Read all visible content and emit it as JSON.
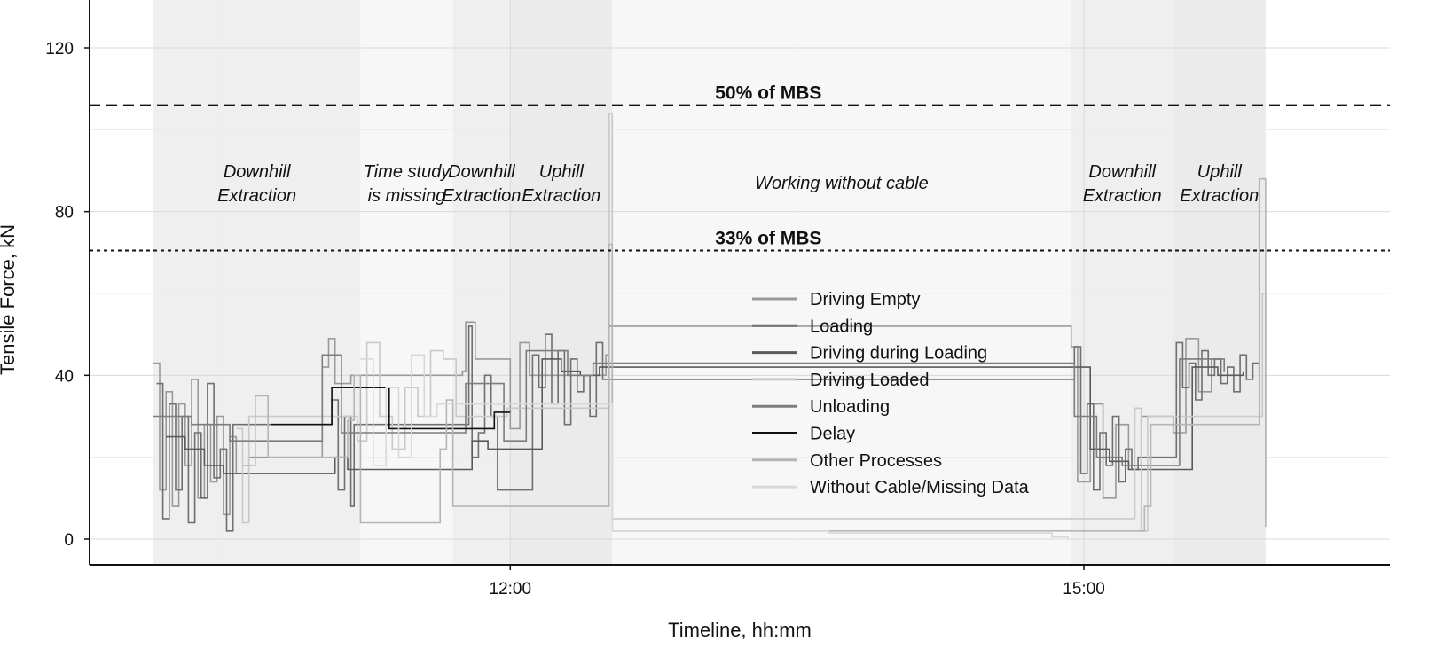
{
  "chart_data": {
    "type": "line",
    "xlabel": "Timeline, hh:mm",
    "ylabel": "Tensile Force, kN",
    "ylim": [
      0,
      128
    ],
    "xlim": [
      "09:48",
      "16:36"
    ],
    "xticks": [
      "12:00",
      "15:00"
    ],
    "yticks": [
      0,
      40,
      80,
      120
    ],
    "grid": true,
    "legend_position": "center",
    "reference_lines": [
      {
        "label": "50% of MBS",
        "value": 106,
        "style": "dashed"
      },
      {
        "label": "33% of MBS",
        "value": 70.5,
        "style": "dotted"
      }
    ],
    "phases": [
      {
        "label_lines": [
          "Downhill",
          "Extraction"
        ],
        "start": "10:08",
        "end": "11:13",
        "shade": "#efefef"
      },
      {
        "label_lines": [
          "Time study",
          "is missing"
        ],
        "start": "11:13",
        "end": "11:42",
        "shade": "#f7f7f7"
      },
      {
        "label_lines": [
          "Downhill",
          "Extraction"
        ],
        "start": "11:42",
        "end": "12:00",
        "shade": "#efefef"
      },
      {
        "label_lines": [
          "Uphill",
          "Extraction"
        ],
        "start": "12:00",
        "end": "12:32",
        "shade": "#ebebeb"
      },
      {
        "label_lines": [
          "Working without cable"
        ],
        "start": "12:32",
        "end": "14:56",
        "shade": "#f7f7f7"
      },
      {
        "label_lines": [
          "Downhill",
          "Extraction"
        ],
        "start": "14:56",
        "end": "15:28",
        "shade": "#efefef"
      },
      {
        "label_lines": [
          "Uphill",
          "Extraction"
        ],
        "start": "15:28",
        "end": "15:57",
        "shade": "#ebebeb"
      }
    ],
    "series": [
      {
        "name": "Driving Empty",
        "color": "#9a9a9a",
        "x": [
          "10:08",
          "10:10",
          "10:12",
          "10:14",
          "10:16",
          "10:18",
          "10:20",
          "10:22",
          "10:24",
          "10:26",
          "10:28",
          "10:30",
          "10:32",
          "10:34",
          "10:38",
          "11:01",
          "11:03",
          "11:05",
          "11:10",
          "11:45",
          "11:46",
          "11:49",
          "12:00",
          "12:03",
          "12:06",
          "12:30",
          "12:31",
          "14:56",
          "14:58",
          "15:02",
          "15:06",
          "15:10",
          "15:14",
          "15:18",
          "15:28",
          "15:32",
          "15:36",
          "15:40"
        ],
        "y": [
          43,
          12,
          36,
          8,
          33,
          18,
          39,
          10,
          28,
          14,
          30,
          6,
          25,
          16,
          20,
          42,
          49,
          38,
          40,
          41,
          53,
          44,
          27,
          48,
          40,
          45,
          52,
          47,
          14,
          33,
          10,
          28,
          18,
          30,
          26,
          49,
          36,
          44
        ]
      },
      {
        "name": "Loading",
        "color": "#6f6f6f",
        "x": [
          "10:09",
          "10:11",
          "10:13",
          "10:15",
          "10:17",
          "10:19",
          "10:21",
          "10:23",
          "10:25",
          "10:27",
          "10:29",
          "10:31",
          "10:33",
          "11:04",
          "11:06",
          "11:08",
          "11:10",
          "11:11",
          "11:47",
          "11:48",
          "11:50",
          "11:52",
          "11:54",
          "11:56",
          "12:07",
          "12:09",
          "12:11",
          "12:13",
          "12:15",
          "12:17",
          "12:19",
          "12:21",
          "12:23",
          "12:25",
          "12:27",
          "12:29",
          "14:57",
          "14:59",
          "15:01",
          "15:03",
          "15:05",
          "15:07",
          "15:09",
          "15:11",
          "15:13",
          "15:15",
          "15:17",
          "15:29",
          "15:31",
          "15:33",
          "15:35",
          "15:37",
          "15:39",
          "15:41",
          "15:43",
          "15:45",
          "15:47",
          "15:49",
          "15:51",
          "15:53",
          "15:55"
        ],
        "y": [
          38,
          5,
          33,
          12,
          30,
          4,
          26,
          10,
          38,
          15,
          22,
          2,
          28,
          34,
          12,
          30,
          8,
          28,
          52,
          20,
          26,
          40,
          30,
          12,
          45,
          37,
          50,
          33,
          46,
          28,
          44,
          36,
          40,
          30,
          48,
          39,
          47,
          16,
          33,
          12,
          26,
          18,
          30,
          14,
          22,
          17,
          20,
          48,
          37,
          43,
          34,
          46,
          40,
          44,
          38,
          42,
          36,
          45,
          39,
          43,
          40
        ]
      },
      {
        "name": "Driving during Loading",
        "color": "#5a5a5a",
        "x": [
          "10:12",
          "10:18",
          "10:24",
          "10:30",
          "11:05",
          "11:09",
          "11:48",
          "11:53",
          "12:10",
          "12:16",
          "12:22",
          "12:28",
          "15:02",
          "15:08",
          "15:14",
          "15:34",
          "15:42",
          "15:50"
        ],
        "y": [
          25,
          22,
          18,
          16,
          20,
          17,
          24,
          22,
          44,
          41,
          40,
          42,
          22,
          19,
          17,
          42,
          40,
          41
        ]
      },
      {
        "name": "Driving Loaded",
        "color": "#c9c9c9",
        "x": [
          "10:34",
          "10:36",
          "10:38",
          "11:12",
          "11:15",
          "11:19",
          "11:23",
          "11:27",
          "11:31",
          "11:35",
          "11:39",
          "11:43",
          "11:59",
          "12:31",
          "12:32",
          "15:16",
          "15:18",
          "15:20",
          "15:56",
          "15:57"
        ],
        "y": [
          27,
          4,
          30,
          24,
          48,
          30,
          22,
          37,
          30,
          46,
          44,
          30,
          32,
          104,
          5,
          32,
          2,
          30,
          60,
          5
        ]
      },
      {
        "name": "Unloading",
        "color": "#7d7d7d",
        "x": [
          "10:08",
          "10:20",
          "10:32",
          "11:01",
          "11:07",
          "11:46",
          "11:58",
          "12:05",
          "12:18",
          "12:26",
          "14:57",
          "15:04",
          "15:12",
          "15:30",
          "15:44"
        ],
        "y": [
          30,
          28,
          24,
          45,
          26,
          38,
          24,
          46,
          40,
          43,
          30,
          20,
          18,
          44,
          41
        ]
      },
      {
        "name": "Delay",
        "color": "#111111",
        "x": [
          "10:45",
          "10:55",
          "11:04",
          "11:06",
          "11:22",
          "11:30",
          "11:55",
          "12:00"
        ],
        "y": [
          28,
          28,
          37,
          37,
          27,
          27,
          31,
          31
        ]
      },
      {
        "name": "Other Processes",
        "color": "#b5b5b5",
        "x": [
          "10:36",
          "10:40",
          "10:44",
          "11:09",
          "11:11",
          "11:13",
          "11:38",
          "11:40",
          "11:42",
          "12:31",
          "12:32",
          "15:19",
          "15:21",
          "15:55",
          "15:57"
        ],
        "y": [
          18,
          35,
          20,
          29,
          40,
          4,
          22,
          34,
          8,
          72,
          2,
          8,
          28,
          88,
          3
        ]
      },
      {
        "name": "Without Cable/Missing Data",
        "color": "#d8d8d8",
        "x": [
          "11:13",
          "11:17",
          "11:21",
          "11:25",
          "11:29",
          "11:33",
          "11:37",
          "12:32",
          "13:40",
          "14:50",
          "14:55"
        ],
        "y": [
          44,
          18,
          37,
          20,
          45,
          30,
          33,
          2,
          1.5,
          0.5,
          0
        ]
      }
    ]
  }
}
